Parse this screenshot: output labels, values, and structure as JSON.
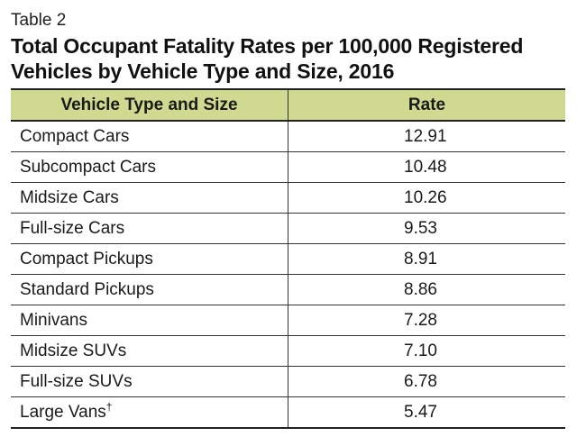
{
  "table_label": "Table 2",
  "title": "Total Occupant Fatality Rates per 100,000 Registered Vehicles by Vehicle Type and Size, 2016",
  "columns": {
    "type": "Vehicle Type and Size",
    "rate": "Rate"
  },
  "header_color": "#cfd990",
  "rows": [
    {
      "type": "Compact Cars",
      "rate": "12.91"
    },
    {
      "type": "Subcompact Cars",
      "rate": "10.48"
    },
    {
      "type": "Midsize Cars",
      "rate": "10.26"
    },
    {
      "type": "Full-size Cars",
      "rate": "9.53"
    },
    {
      "type": "Compact Pickups",
      "rate": "8.91"
    },
    {
      "type": "Standard Pickups",
      "rate": "8.86"
    },
    {
      "type": "Minivans",
      "rate": "7.28"
    },
    {
      "type": "Midsize SUVs",
      "rate": "7.10"
    },
    {
      "type": "Full-size SUVs",
      "rate": "6.78"
    },
    {
      "type": "Large Vans",
      "rate": "5.47",
      "footnote_mark": "†"
    }
  ]
}
